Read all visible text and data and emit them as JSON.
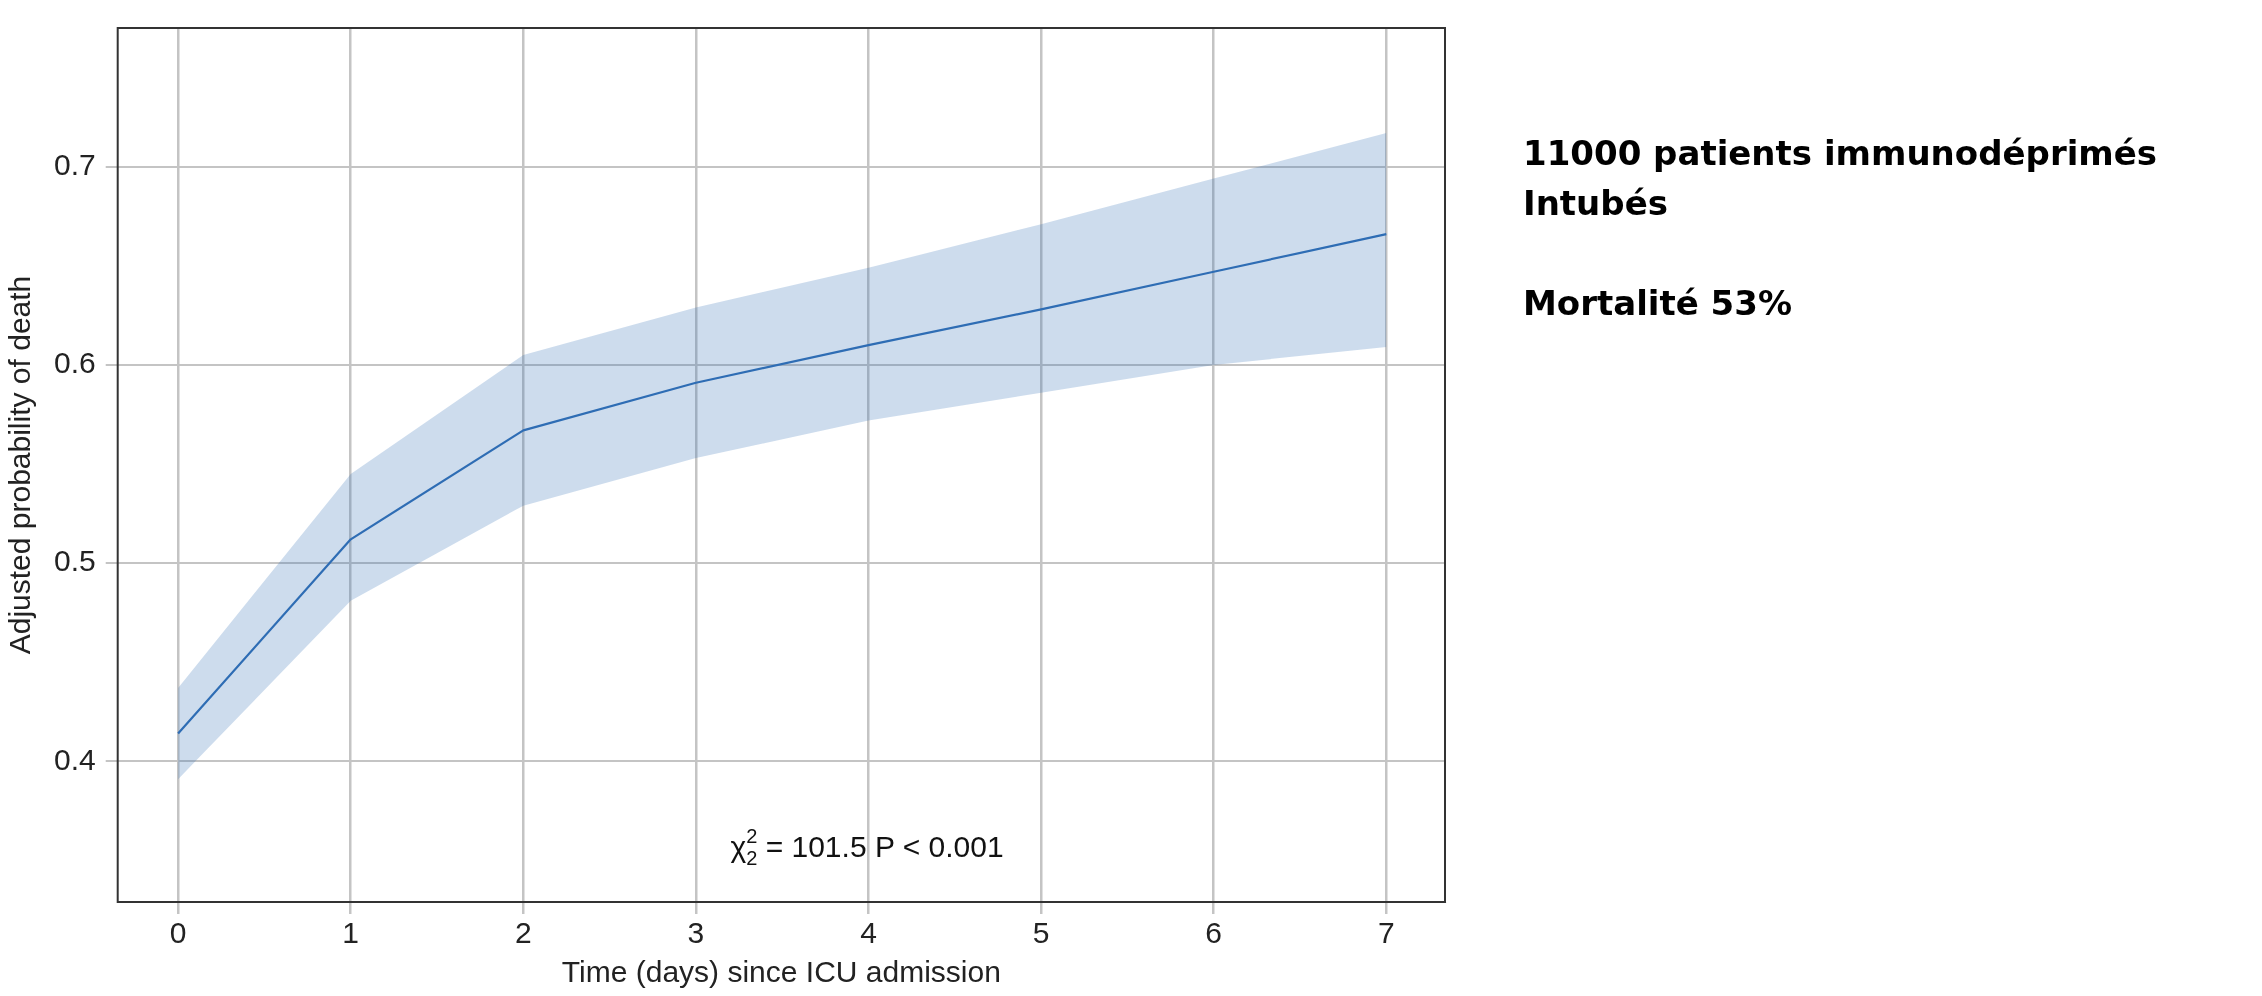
{
  "chart_data": {
    "type": "line",
    "xlabel": "Time (days) since ICU admission",
    "ylabel": "Adjusted probability of death",
    "x": [
      0,
      1,
      2,
      3,
      4,
      5,
      6,
      7
    ],
    "series": [
      {
        "color": "#2f6db5",
        "values": [
          0.414,
          0.512,
          0.567,
          0.591,
          0.61,
          0.628,
          0.647,
          0.666
        ],
        "lower": [
          0.391,
          0.481,
          0.529,
          0.553,
          0.572,
          0.586,
          0.6,
          0.609
        ],
        "upper": [
          0.437,
          0.545,
          0.605,
          0.629,
          0.649,
          0.671,
          0.694,
          0.717
        ]
      }
    ],
    "xlim": [
      -0.35,
      7.34
    ],
    "xticks": [
      0,
      1,
      2,
      3,
      4,
      5,
      6,
      7
    ],
    "ylim": [
      0.329,
      0.77
    ],
    "yticks": [
      0.4,
      0.5,
      0.6,
      0.7
    ],
    "grid": true,
    "legend": false,
    "marker": "none",
    "line_style": "solid",
    "annotations": [
      "χ$_{2}$$^{2}$ = 101.5 P < 0.001",
      "11000 patients immunodéprimés",
      "Intubés",
      "Mortalité 53%"
    ]
  }
}
